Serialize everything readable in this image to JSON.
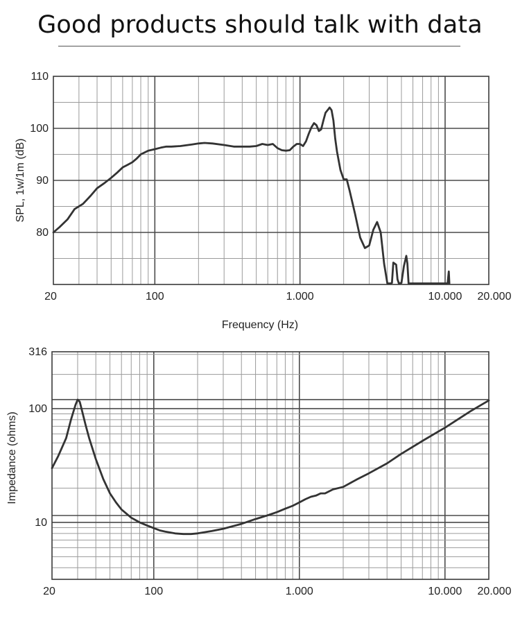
{
  "headline": "Good products should talk with data",
  "colors": {
    "curve": "#333333",
    "grid_major": "#4a4a4a",
    "grid_minor": "#9a9a9a",
    "background": "#ffffff"
  },
  "chart_data": [
    {
      "type": "line",
      "title": "",
      "xlabel": "Frequency (Hz)",
      "ylabel": "SPL, 1w/1m (dB)",
      "x_scale": "log",
      "xlim": [
        20,
        20000
      ],
      "ylim": [
        70,
        110
      ],
      "grid": true,
      "x_ticks": [
        {
          "value": 20,
          "label": "20"
        },
        {
          "value": 100,
          "label": "100"
        },
        {
          "value": 1000,
          "label": "1.000"
        },
        {
          "value": 10000,
          "label": "10.000"
        },
        {
          "value": 20000,
          "label": "20.000"
        }
      ],
      "y_ticks": [
        {
          "value": 80,
          "label": "80"
        },
        {
          "value": 90,
          "label": "90"
        },
        {
          "value": 100,
          "label": "100"
        },
        {
          "value": 110,
          "label": "110"
        }
      ],
      "series": [
        {
          "x": [
            20,
            22,
            25,
            28,
            32,
            36,
            40,
            45,
            50,
            55,
            60,
            65,
            70,
            75,
            80,
            90,
            100,
            110,
            120,
            130,
            150,
            180,
            200,
            220,
            250,
            300,
            350,
            400,
            450,
            500,
            550,
            600,
            650,
            700,
            750,
            800,
            850,
            900,
            950,
            1000,
            1050,
            1100,
            1150,
            1200,
            1250,
            1300,
            1350,
            1400,
            1450,
            1500,
            1550,
            1600,
            1650,
            1700,
            1750,
            1800,
            1900,
            2000,
            2100,
            2200,
            2400,
            2600,
            2800,
            3000,
            3200,
            3400,
            3600,
            3800,
            4000,
            4100,
            4200,
            4300,
            4400,
            4600,
            4700,
            4800,
            5000,
            5200,
            5400,
            5500,
            5600,
            5800,
            6000,
            7000,
            8000,
            9000,
            10000,
            10400,
            10600,
            10700
          ],
          "y": [
            80.0,
            81.0,
            82.5,
            84.5,
            85.5,
            87.0,
            88.5,
            89.5,
            90.5,
            91.5,
            92.5,
            93.0,
            93.5,
            94.2,
            95.0,
            95.7,
            96.0,
            96.3,
            96.5,
            96.5,
            96.6,
            96.9,
            97.1,
            97.2,
            97.1,
            96.8,
            96.5,
            96.5,
            96.5,
            96.6,
            97.0,
            96.8,
            97.0,
            96.2,
            95.8,
            95.7,
            95.8,
            96.5,
            97.0,
            97.0,
            96.6,
            97.5,
            99.0,
            100.2,
            101.0,
            100.6,
            99.5,
            99.8,
            101.5,
            103.0,
            103.5,
            104.0,
            103.5,
            101.5,
            98.0,
            95.5,
            92.0,
            90.2,
            90.2,
            88.0,
            83.5,
            79.0,
            77.0,
            77.5,
            80.5,
            82.0,
            80.0,
            74.0,
            70.2,
            70.2,
            70.2,
            70.3,
            74.2,
            73.8,
            71.0,
            70.2,
            70.3,
            73.5,
            75.5,
            74.0,
            70.2,
            70.2,
            70.2,
            70.2,
            70.2,
            70.2,
            70.2,
            70.2,
            72.5,
            70.2
          ]
        }
      ]
    },
    {
      "type": "line",
      "title": "",
      "xlabel": "",
      "ylabel": "Impedance (ohms)",
      "x_scale": "log",
      "y_scale": "log",
      "xlim": [
        20,
        20000
      ],
      "ylim": [
        3.16,
        316
      ],
      "grid": true,
      "x_ticks": [
        {
          "value": 20,
          "label": "20"
        },
        {
          "value": 100,
          "label": "100"
        },
        {
          "value": 1000,
          "label": "1.000"
        },
        {
          "value": 10000,
          "label": "10.000"
        },
        {
          "value": 20000,
          "label": "20.000"
        }
      ],
      "y_ticks": [
        {
          "value": 10,
          "label": "10"
        },
        {
          "value": 100,
          "label": "100"
        },
        {
          "value": 316,
          "label": "316"
        }
      ],
      "series": [
        {
          "x": [
            20,
            22,
            25,
            27,
            29,
            30,
            31,
            32,
            34,
            36,
            40,
            45,
            50,
            55,
            60,
            70,
            80,
            90,
            100,
            110,
            120,
            140,
            160,
            180,
            200,
            250,
            300,
            400,
            500,
            600,
            700,
            800,
            900,
            1000,
            1100,
            1200,
            1300,
            1400,
            1500,
            1700,
            2000,
            2500,
            3000,
            4000,
            5000,
            7000,
            10000,
            15000,
            20000
          ],
          "y": [
            30,
            38,
            55,
            80,
            108,
            120,
            115,
            98,
            72,
            55,
            36,
            24,
            18,
            15,
            13,
            11,
            10,
            9.4,
            8.9,
            8.5,
            8.3,
            8.0,
            7.9,
            7.9,
            8.0,
            8.4,
            8.8,
            9.7,
            10.7,
            11.5,
            12.3,
            13.2,
            14.0,
            15.0,
            16.0,
            16.8,
            17.2,
            18.0,
            18.0,
            19.5,
            20.5,
            24.0,
            27.0,
            33.0,
            40.0,
            52.0,
            68.0,
            95.0,
            118.0
          ]
        }
      ]
    }
  ]
}
